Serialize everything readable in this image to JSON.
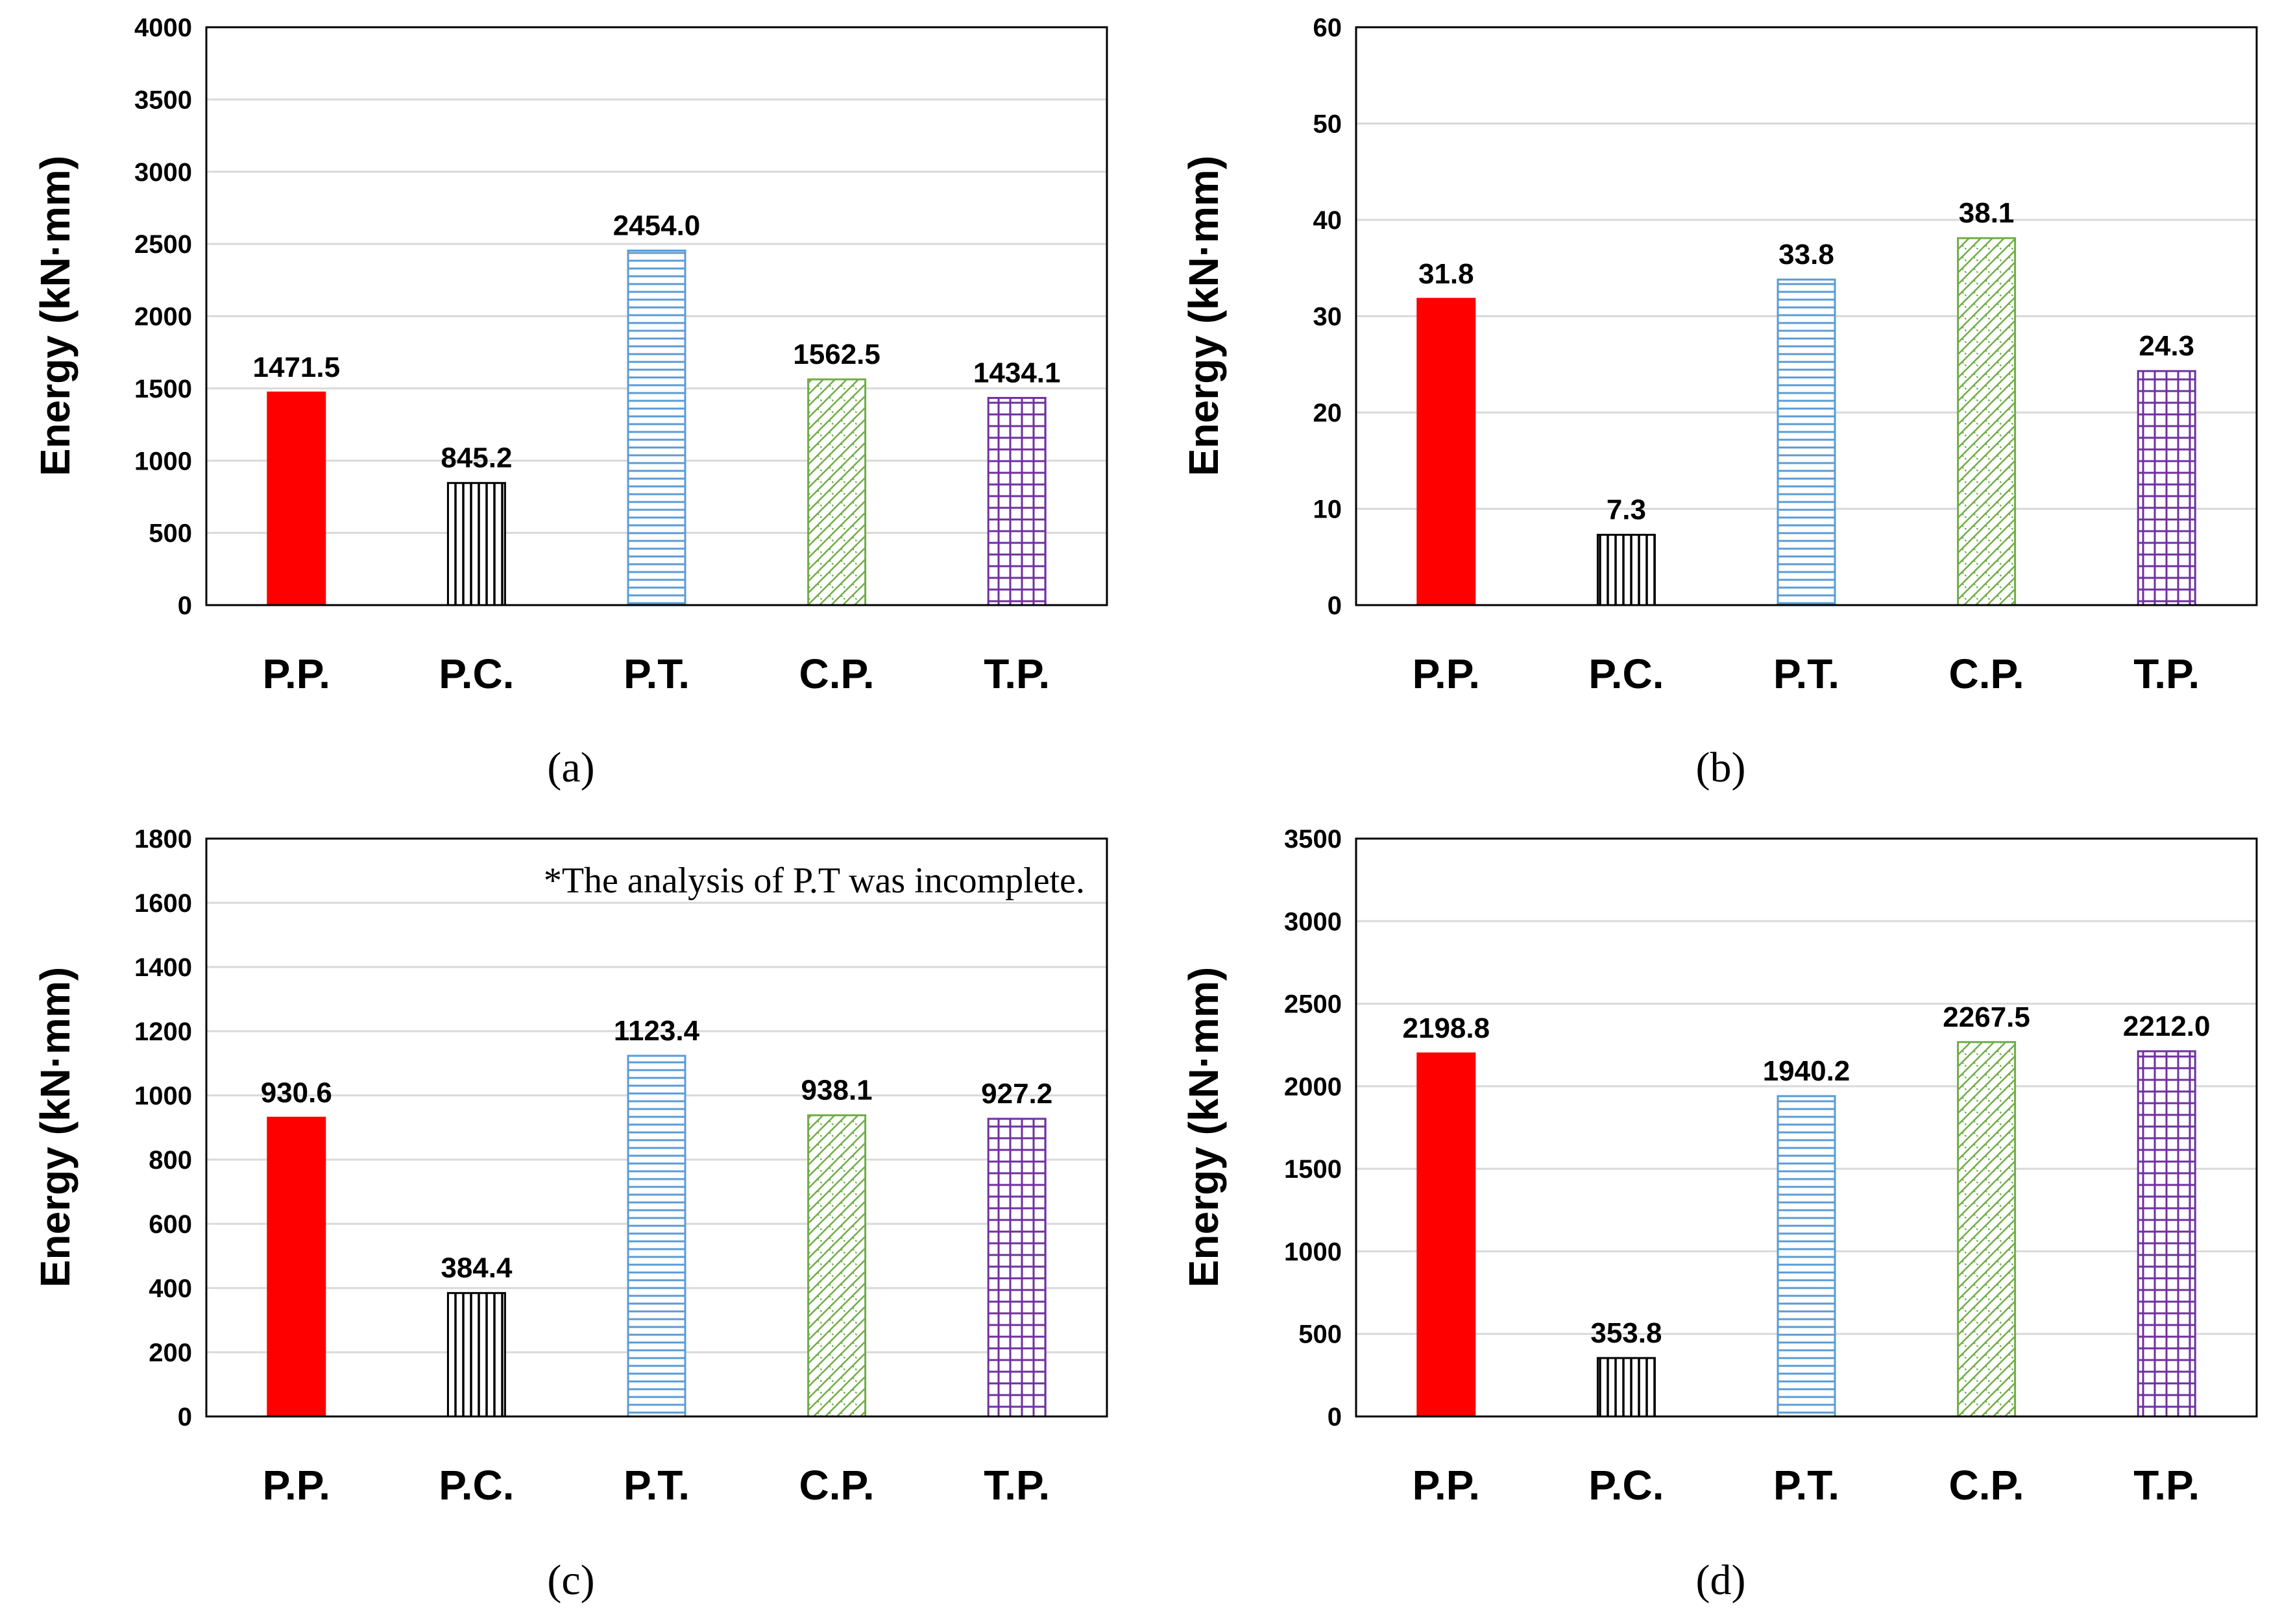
{
  "patterns": [
    {
      "key": "pp",
      "color": "#ff0000",
      "style": "solid"
    },
    {
      "key": "pc",
      "color": "#000000",
      "style": "vlines"
    },
    {
      "key": "pt",
      "color": "#5b9bd5",
      "style": "hlines"
    },
    {
      "key": "cp",
      "color": "#70ad47",
      "style": "diag"
    },
    {
      "key": "tp",
      "color": "#7030a0",
      "style": "grid"
    }
  ],
  "chart_data": [
    {
      "id": "a",
      "type": "bar",
      "panel_label": "(a)",
      "ylabel": "Energy (kN·mm)",
      "categories": [
        "P.P.",
        "P.C.",
        "P.T.",
        "C.P.",
        "T.P."
      ],
      "values": [
        1471.5,
        845.2,
        2454.0,
        1562.5,
        1434.1
      ],
      "value_labels": [
        "1471.5",
        "845.2",
        "2454.0",
        "1562.5",
        "1434.1"
      ],
      "ylim": [
        0,
        4000
      ],
      "yticks": [
        0,
        500,
        1000,
        1500,
        2000,
        2500,
        3000,
        3500,
        4000
      ],
      "grid": true,
      "note": ""
    },
    {
      "id": "b",
      "type": "bar",
      "panel_label": "(b)",
      "ylabel": "Energy (kN·mm)",
      "categories": [
        "P.P.",
        "P.C.",
        "P.T.",
        "C.P.",
        "T.P."
      ],
      "values": [
        31.8,
        7.3,
        33.8,
        38.1,
        24.3
      ],
      "value_labels": [
        "31.8",
        "7.3",
        "33.8",
        "38.1",
        "24.3"
      ],
      "ylim": [
        0,
        60
      ],
      "yticks": [
        0,
        10,
        20,
        30,
        40,
        50,
        60
      ],
      "grid": true,
      "note": ""
    },
    {
      "id": "c",
      "type": "bar",
      "panel_label": "(c)",
      "ylabel": "Energy (kN·mm)",
      "categories": [
        "P.P.",
        "P.C.",
        "P.T.",
        "C.P.",
        "T.P."
      ],
      "values": [
        930.6,
        384.4,
        1123.4,
        938.1,
        927.2
      ],
      "value_labels": [
        "930.6",
        "384.4",
        "1123.4",
        "938.1",
        "927.2"
      ],
      "ylim": [
        0,
        1800
      ],
      "yticks": [
        0,
        200,
        400,
        600,
        800,
        1000,
        1200,
        1400,
        1600,
        1800
      ],
      "grid": true,
      "note": "*The analysis of P.T was incomplete."
    },
    {
      "id": "d",
      "type": "bar",
      "panel_label": "(d)",
      "ylabel": "Energy (kN·mm)",
      "categories": [
        "P.P.",
        "P.C.",
        "P.T.",
        "C.P.",
        "T.P."
      ],
      "values": [
        2198.8,
        353.8,
        1940.2,
        2267.5,
        2212.0
      ],
      "value_labels": [
        "2198.8",
        "353.8",
        "1940.2",
        "2267.5",
        "2212.0"
      ],
      "ylim": [
        0,
        3500
      ],
      "yticks": [
        0,
        500,
        1000,
        1500,
        2000,
        2500,
        3000,
        3500
      ],
      "grid": true,
      "note": ""
    }
  ]
}
